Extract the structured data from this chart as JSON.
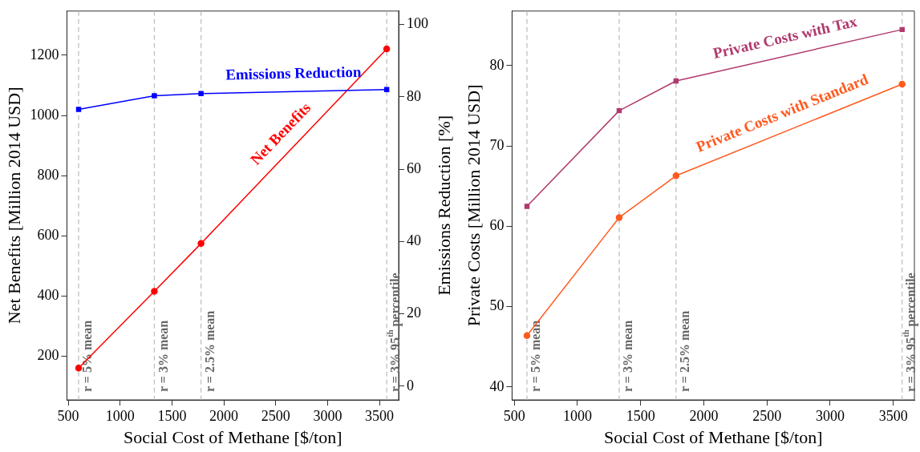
{
  "chart_data": [
    {
      "type": "line",
      "xlabel": "Social Cost of Methane [$/ton]",
      "ylabel": "Net Benefits [Million 2014 USD]",
      "y2label": "Emissions Reduction [%]",
      "x": [
        600,
        1330,
        1780,
        3570
      ],
      "series": [
        {
          "name": "Emissions Reduction",
          "color": "#0000ff",
          "marker": "square",
          "axis": "y2",
          "values": [
            76.5,
            80.3,
            80.9,
            82.0
          ]
        },
        {
          "name": "Net Benefits",
          "color": "#ff0000",
          "marker": "circle",
          "values": [
            160,
            415,
            574,
            1221
          ]
        }
      ],
      "xlim": [
        487,
        3685
      ],
      "xticks": [
        500,
        1000,
        1500,
        2000,
        2500,
        3000,
        3500
      ],
      "ylim": [
        54,
        1347
      ],
      "yticks": [
        200,
        400,
        600,
        800,
        1000,
        1200
      ],
      "y2lim": [
        -3.8,
        103.7
      ],
      "y2ticks": [
        0,
        20,
        40,
        60,
        80,
        100
      ],
      "ref_lines": [
        {
          "axis": "x",
          "value": 600,
          "color": "#bfbfbf",
          "line_style": "dashed"
        },
        {
          "axis": "x",
          "value": 1330,
          "color": "#bfbfbf",
          "line_style": "dashed"
        },
        {
          "axis": "x",
          "value": 1780,
          "color": "#bfbfbf",
          "line_style": "dashed"
        },
        {
          "axis": "x",
          "value": 3570,
          "color": "#bfbfbf",
          "line_style": "dashed"
        }
      ],
      "annotations": [
        {
          "text": "r = 5% mean",
          "x": 600
        },
        {
          "text": "r = 3% mean",
          "x": 1330
        },
        {
          "text": "r = 2.5% mean",
          "x": 1780
        },
        {
          "text": "r = 3% 95$^{th}$ percentile",
          "x": 3570
        }
      ],
      "grid": false,
      "legend": false,
      "line_style": "solid"
    },
    {
      "type": "line",
      "xlabel": "Social Cost of Methane [$/ton]",
      "ylabel": "Private Costs [Million 2014 USD]",
      "x": [
        600,
        1330,
        1780,
        3570
      ],
      "series": [
        {
          "name": "Private Costs with Tax",
          "color": "#b03a6e",
          "marker": "square",
          "values": [
            62.5,
            74.4,
            78.1,
            84.5
          ]
        },
        {
          "name": "Private Costs with Standard",
          "color": "#ff5a1f",
          "marker": "circle",
          "values": [
            46.4,
            61.1,
            66.3,
            77.7
          ]
        }
      ],
      "xlim": [
        482,
        3667
      ],
      "xticks": [
        500,
        1000,
        1500,
        2000,
        2500,
        3000,
        3500
      ],
      "ylim": [
        38.4,
        86.8
      ],
      "yticks": [
        40,
        50,
        60,
        70,
        80
      ],
      "ref_lines": [
        {
          "axis": "x",
          "value": 600,
          "color": "#bfbfbf",
          "line_style": "dashed"
        },
        {
          "axis": "x",
          "value": 1330,
          "color": "#bfbfbf",
          "line_style": "dashed"
        },
        {
          "axis": "x",
          "value": 1780,
          "color": "#bfbfbf",
          "line_style": "dashed"
        },
        {
          "axis": "x",
          "value": 3570,
          "color": "#bfbfbf",
          "line_style": "dashed"
        }
      ],
      "annotations": [
        {
          "text": "r = 5% mean",
          "x": 600
        },
        {
          "text": "r = 3% mean",
          "x": 1330
        },
        {
          "text": "r = 2.5% mean",
          "x": 1780
        },
        {
          "text": "r = 3% 95$^{th}$ percentile",
          "x": 3570
        }
      ],
      "grid": false,
      "legend": false,
      "line_style": "solid"
    }
  ]
}
